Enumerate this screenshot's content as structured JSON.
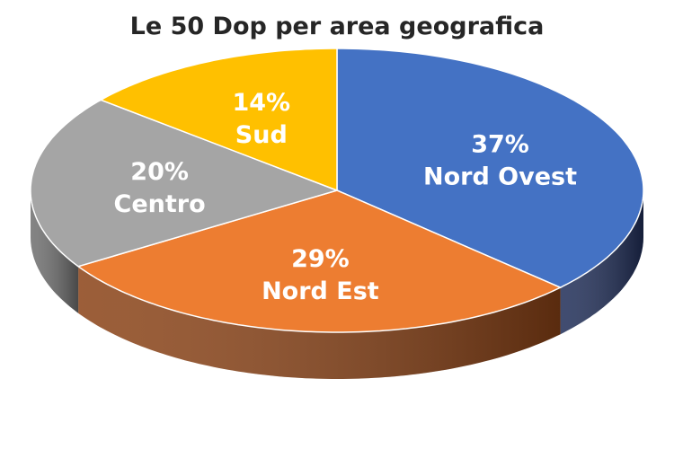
{
  "chart_data": {
    "type": "pie",
    "style": "3d",
    "title": "Le 50 Dop per area geografica",
    "slices": [
      {
        "label": "Nord Ovest",
        "value": 37,
        "display": "37%",
        "color": "#4472C4",
        "side_color": "#1F2D57"
      },
      {
        "label": "Nord Est",
        "value": 29,
        "display": "29%",
        "color": "#ED7D31",
        "side_color": "#8A4216"
      },
      {
        "label": "Centro",
        "value": 20,
        "display": "20%",
        "color": "#A5A5A5",
        "side_color": "#6E6E6E"
      },
      {
        "label": "Sud",
        "value": 14,
        "display": "14%",
        "color": "#FFC000",
        "side_color": "#A07800"
      }
    ],
    "start": "top",
    "direction": "clockwise",
    "legend": "none"
  }
}
